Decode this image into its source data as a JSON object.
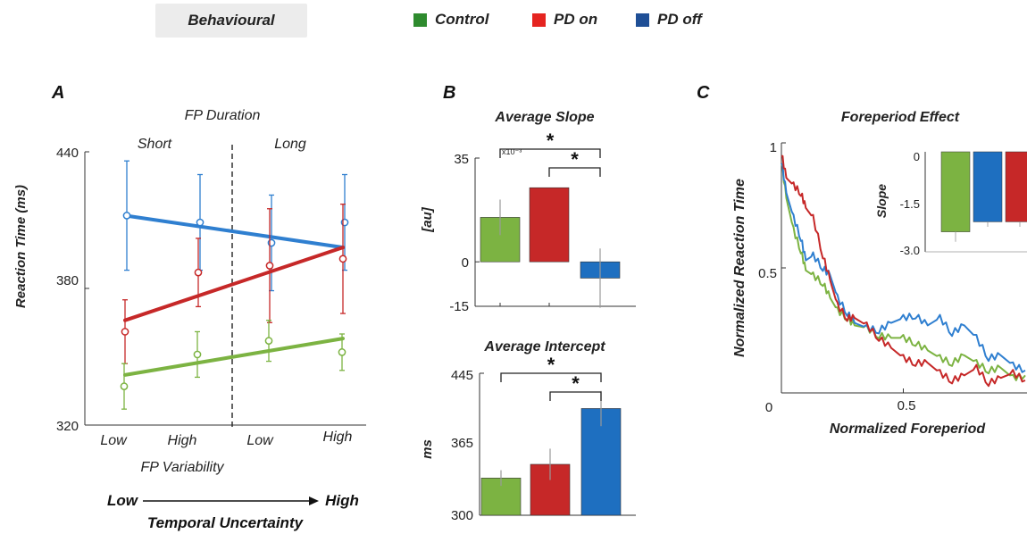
{
  "header": {
    "title": "Behavioural"
  },
  "legend": [
    {
      "label": "Control",
      "color": "#2e8b2e"
    },
    {
      "label": "PD on",
      "color": "#e52420"
    },
    {
      "label": "PD off",
      "color": "#1f4f96"
    }
  ],
  "colors": {
    "control": "#7cb342",
    "pd_on": "#c62828",
    "pd_off": "#1e6fc0",
    "pd_off_line": "#2f7fd0"
  },
  "panels": {
    "a": "A",
    "b": "B",
    "c": "C"
  },
  "chart_data": [
    {
      "id": "A",
      "type": "line",
      "title": "FP Duration",
      "group_labels": [
        "Short",
        "Long"
      ],
      "categories": [
        "Low",
        "High",
        "Low",
        "High"
      ],
      "xlabel": "FP Variability",
      "ylabel": "Reaction Time (ms)",
      "ylim": [
        320,
        440
      ],
      "yticks": [
        320,
        380,
        440
      ],
      "arrow_label_left": "Low",
      "arrow_label_right": "High",
      "arrow_caption": "Temporal Uncertainty",
      "series": [
        {
          "key": "pd_off",
          "points": [
            412,
            409,
            400,
            409
          ],
          "err": [
            24,
            21,
            21,
            21
          ],
          "fit": [
            412,
            398
          ]
        },
        {
          "key": "pd_on",
          "points": [
            361,
            387,
            390,
            393
          ],
          "err": [
            14,
            15,
            25,
            24
          ],
          "fit": [
            366,
            398
          ]
        },
        {
          "key": "control",
          "points": [
            337,
            351,
            357,
            352
          ],
          "err": [
            10,
            10,
            9,
            8
          ],
          "fit": [
            342,
            358
          ]
        }
      ]
    },
    {
      "id": "B1",
      "type": "bar",
      "title": "Average Slope",
      "ylabel": "[au]",
      "exponent": "x10⁻³",
      "ylim": [
        -15,
        35
      ],
      "yticks": [
        35,
        0,
        -15
      ],
      "values": [
        15,
        25,
        -5.5
      ],
      "err": [
        6,
        0,
        10
      ],
      "keys": [
        "control",
        "pd_on",
        "pd_off"
      ],
      "sig": [
        "*",
        "*"
      ]
    },
    {
      "id": "B2",
      "type": "bar",
      "title": "Average Intercept",
      "ylabel": "ms",
      "ylim": [
        300,
        445
      ],
      "yticks": [
        445,
        365,
        300
      ],
      "values": [
        338,
        352,
        409
      ],
      "err": [
        8,
        16,
        18
      ],
      "keys": [
        "control",
        "pd_on",
        "pd_off"
      ],
      "sig": [
        "*",
        "*"
      ]
    },
    {
      "id": "C",
      "type": "line",
      "title": "Foreperiod Effect",
      "xlabel": "Normalized  Foreperiod",
      "ylabel": "Normalized Reaction Time",
      "xlim": [
        0,
        1
      ],
      "ylim": [
        0,
        1
      ],
      "xticks": [
        0,
        0.5
      ],
      "yticks": [
        0.5,
        1
      ],
      "series": [
        {
          "key": "control",
          "x": [
            0,
            0.02,
            0.05,
            0.08,
            0.1,
            0.13,
            0.17,
            0.2,
            0.23,
            0.27,
            0.3,
            0.35,
            0.4,
            0.45,
            0.5,
            0.55,
            0.6,
            0.65,
            0.7,
            0.75,
            0.8,
            0.85,
            0.9,
            0.95,
            1.0
          ],
          "y": [
            0.93,
            0.78,
            0.65,
            0.57,
            0.49,
            0.47,
            0.44,
            0.38,
            0.33,
            0.3,
            0.27,
            0.26,
            0.23,
            0.22,
            0.22,
            0.2,
            0.17,
            0.14,
            0.12,
            0.15,
            0.12,
            0.09,
            0.1,
            0.06,
            0.07
          ]
        },
        {
          "key": "pd_off",
          "x": [
            0,
            0.02,
            0.05,
            0.08,
            0.1,
            0.13,
            0.17,
            0.2,
            0.23,
            0.27,
            0.3,
            0.35,
            0.4,
            0.45,
            0.5,
            0.55,
            0.6,
            0.65,
            0.7,
            0.75,
            0.8,
            0.85,
            0.9,
            0.95,
            1.0
          ],
          "y": [
            0.93,
            0.8,
            0.7,
            0.62,
            0.53,
            0.55,
            0.5,
            0.47,
            0.38,
            0.32,
            0.28,
            0.26,
            0.25,
            0.28,
            0.3,
            0.31,
            0.27,
            0.3,
            0.24,
            0.27,
            0.22,
            0.14,
            0.15,
            0.11,
            0.09
          ]
        },
        {
          "key": "pd_on",
          "x": [
            0,
            0.02,
            0.05,
            0.08,
            0.1,
            0.13,
            0.17,
            0.2,
            0.23,
            0.27,
            0.3,
            0.35,
            0.4,
            0.45,
            0.5,
            0.55,
            0.6,
            0.65,
            0.7,
            0.75,
            0.8,
            0.85,
            0.9,
            0.95,
            1.0
          ],
          "y": [
            0.96,
            0.86,
            0.83,
            0.8,
            0.74,
            0.7,
            0.55,
            0.45,
            0.35,
            0.3,
            0.3,
            0.27,
            0.22,
            0.18,
            0.14,
            0.12,
            0.12,
            0.08,
            0.05,
            0.07,
            0.1,
            0.04,
            0.06,
            0.08,
            0.05
          ]
        }
      ],
      "inset": {
        "type": "bar",
        "ylabel": "Slope",
        "ylim": [
          -3.0,
          0
        ],
        "yticks": [
          "0",
          "-1.5",
          "-3.0"
        ],
        "values": [
          -2.4,
          -2.1,
          -2.1
        ],
        "err": [
          0.3,
          0.15,
          0.15
        ],
        "keys": [
          "control",
          "pd_off",
          "pd_on"
        ]
      }
    }
  ]
}
